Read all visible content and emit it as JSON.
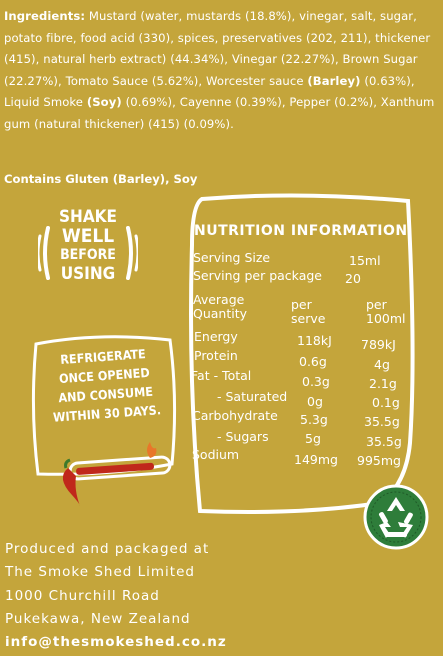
{
  "ingredients": {
    "label": "Ingredients:",
    "text_1": " Mustard (water, mustards (18.8%), vinegar, salt, sugar, potato fibre, food acid (330), spices, preservatives (202, 211), thickener (415), natural herb extract) (44.34%), Vinegar (22.27%), Brown Sugar (22.27%), Tomato Sauce (5.62%), Worcester sauce ",
    "barley": "(Barley)",
    "text_2": " (0.63%), Liquid Smoke ",
    "soy": "(Soy)",
    "text_3": " (0.69%), Cayenne (0.39%), Pepper (0.2%), Xanthum gum (natural thickener) (415) (0.09%).",
    "contains": "Contains Gluten (Barley), Soy"
  },
  "shake": [
    "SHAKE",
    "WELL",
    "BEFORE",
    "USING"
  ],
  "refrigerate": [
    "REFRIGERATE",
    "ONCE OPENED",
    "AND CONSUME",
    "WITHIN 30 DAYS."
  ],
  "nutrition": {
    "title": "NUTRITION INFORMATION",
    "serving_size_label": "Serving Size",
    "serving_size_value": "15ml",
    "servings_label": "Serving per package",
    "servings_value": "20",
    "avg_qty_1": "Average",
    "avg_qty_2": "Quantity",
    "per_serve_1": "per",
    "per_serve_2": "serve",
    "per_100_1": "per",
    "per_100_2": "100ml",
    "rows": [
      {
        "label": "Energy",
        "serve": "118kJ",
        "per100": "789kJ"
      },
      {
        "label": "Protein",
        "serve": "0.6g",
        "per100": "4g"
      },
      {
        "label": "Fat - Total",
        "serve": "0.3g",
        "per100": "2.1g"
      },
      {
        "label": "- Saturated",
        "serve": "0g",
        "per100": "0.1g"
      },
      {
        "label": "Carbohydrate",
        "serve": "5.3g",
        "per100": "35.5g"
      },
      {
        "label": "- Sugars",
        "serve": "5g",
        "per100": "35.5g"
      },
      {
        "label": "Sodium",
        "serve": "149mg",
        "per100": "995mg"
      }
    ]
  },
  "footer": {
    "line1": "Produced and packaged at",
    "line2": "The Smoke Shed Limited",
    "line3": "1000 Churchill Road",
    "line4": "Pukekawa, New Zealand",
    "email": "info@thesmokeshed.co.nz"
  },
  "colors": {
    "background": "#c4a53b",
    "text": "#ffffff",
    "recycle_green": "#2e7d3a",
    "chilli_red": "#c0281b"
  }
}
